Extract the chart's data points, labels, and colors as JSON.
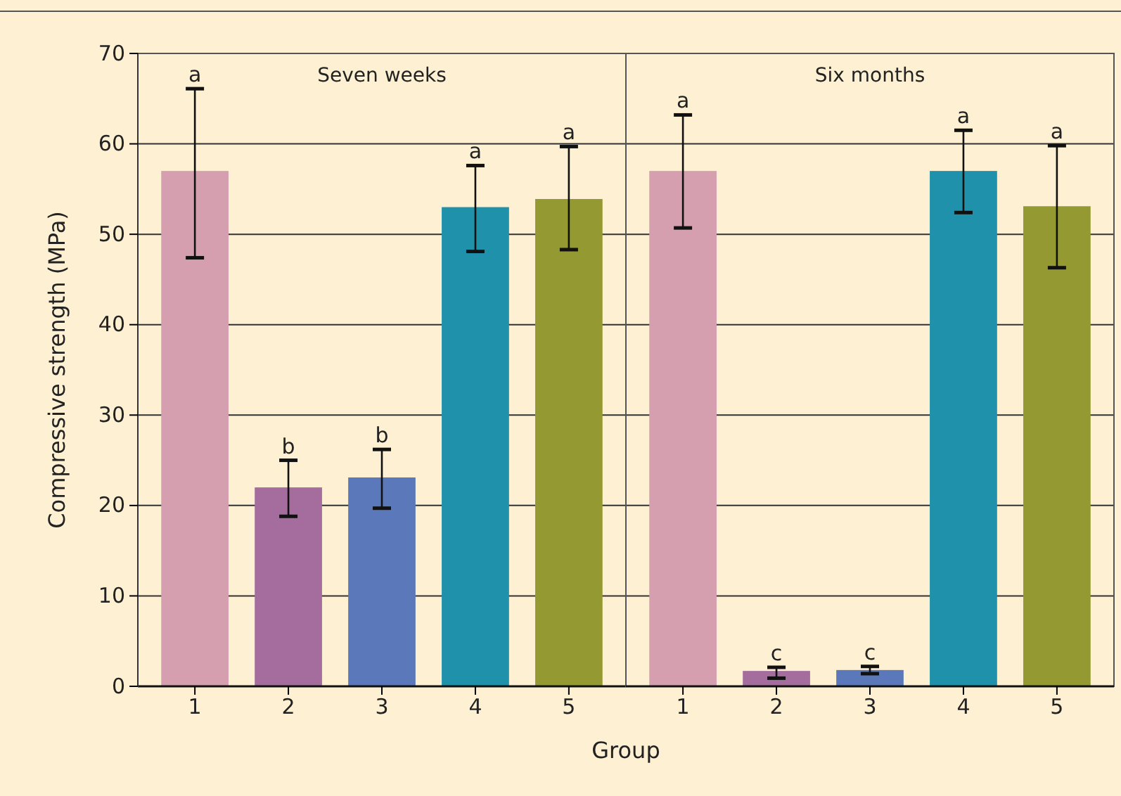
{
  "chart_data": [
    {
      "type": "bar",
      "title": "Seven weeks",
      "xlabel": "Group",
      "ylabel": "Compressive strength (MPa)",
      "categories": [
        "1",
        "2",
        "3",
        "4",
        "5"
      ],
      "values": [
        57,
        22,
        23.1,
        53,
        53.9
      ],
      "colors": [
        "#d59fb0",
        "#a56d9d",
        "#5b79ba",
        "#1f91aa",
        "#949a31"
      ],
      "errors": [
        [
          47.4,
          66.1
        ],
        [
          18.8,
          25
        ],
        [
          19.7,
          26.2
        ],
        [
          48.1,
          57.6
        ],
        [
          48.3,
          59.7
        ]
      ],
      "annotations": [
        {
          "text": "a",
          "x": "1",
          "y": 66.1
        },
        {
          "text": "b",
          "x": "2",
          "y": 25
        },
        {
          "text": "b",
          "x": "3",
          "y": 26.2
        },
        {
          "text": "a",
          "x": "4",
          "y": 57.6
        },
        {
          "text": "a",
          "x": "5",
          "y": 59.7
        }
      ],
      "ylim": [
        0,
        70
      ],
      "yticks": [
        0,
        10,
        20,
        30,
        40,
        50,
        60,
        70
      ],
      "grid": "y"
    },
    {
      "type": "bar",
      "title": "Six months",
      "categories": [
        "1",
        "2",
        "3",
        "4",
        "5"
      ],
      "values": [
        57,
        1.7,
        1.8,
        57,
        53.1
      ],
      "colors": [
        "#d59fb0",
        "#a56d9d",
        "#5b79ba",
        "#1f91aa",
        "#949a31"
      ],
      "errors": [
        [
          50.7,
          63.2
        ],
        [
          0.9,
          2.1
        ],
        [
          1.4,
          2.2
        ],
        [
          52.4,
          61.5
        ],
        [
          46.3,
          59.8
        ]
      ],
      "annotations": [
        {
          "text": "a",
          "x": "1",
          "y": 63.2
        },
        {
          "text": "c",
          "x": "2",
          "y": 2.1
        },
        {
          "text": "c",
          "x": "3",
          "y": 2.2
        },
        {
          "text": "a",
          "x": "4",
          "y": 61.5
        },
        {
          "text": "a",
          "x": "5",
          "y": 59.8
        }
      ],
      "ylim": [
        0,
        70
      ],
      "yticks": [
        0,
        10,
        20,
        30,
        40,
        50,
        60,
        70
      ],
      "grid": "y",
      "tick_labels": "x"
    }
  ]
}
